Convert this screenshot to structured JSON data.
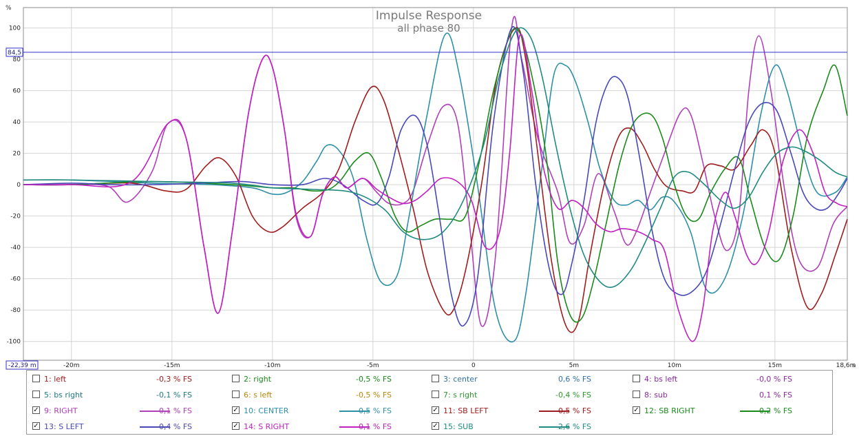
{
  "chart_data": {
    "type": "line",
    "title": "Impulse Response",
    "subtitle": "all phase 80",
    "y_unit": "%",
    "x_unit": "s",
    "xlim": [
      -22.39,
      18.6
    ],
    "ylim": [
      -112,
      113
    ],
    "x_ticks": [
      -20,
      -15,
      -10,
      -5,
      0,
      5,
      10,
      15
    ],
    "x_tick_labels": [
      "-20m",
      "-15m",
      "-10m",
      "-5m",
      "0",
      "5m",
      "10m",
      "15m"
    ],
    "x_left_label": "-22,39 m",
    "x_right_label": "18,6m",
    "y_ticks": [
      -100,
      -80,
      -60,
      -40,
      -20,
      0,
      20,
      40,
      60,
      80,
      100
    ],
    "cursor": {
      "label": "84,5",
      "y": 84.5
    },
    "grid": true,
    "series": [
      {
        "name": "9: RIGHT",
        "color": "#b040b8",
        "x": [
          -22.4,
          -20,
          -18.2,
          -17.2,
          -16,
          -15.2,
          -14.3,
          -13.4,
          -12.7,
          -12,
          -11.2,
          -10.5,
          -10,
          -9.4,
          -8.8,
          -8.1,
          -7.5,
          -6.9,
          -6.3,
          -5.5,
          -4.8,
          -4.2,
          -3.5,
          -3,
          -2.3,
          -1.5,
          -0.8,
          -0.2,
          0.4,
          1.1,
          1.9,
          2.4,
          3.2,
          4.2,
          4.8,
          5.5,
          6.2,
          7,
          7.6,
          8.1,
          8.8,
          9.5,
          10.3,
          10.8,
          11.4,
          12,
          12.6,
          13.2,
          13.7,
          14.2,
          14.8,
          15.5,
          16.2,
          17.1,
          17.9,
          18.6
        ],
        "y": [
          0,
          0,
          -1,
          -11,
          8,
          39,
          30,
          -40,
          -82,
          -30,
          45,
          80,
          75,
          35,
          -22,
          -33,
          -6,
          5,
          -2,
          4,
          -5,
          -12,
          -12,
          -4,
          25,
          50,
          40,
          -25,
          -90,
          -45,
          100,
          80,
          30,
          -5,
          -37,
          -26,
          7,
          -17,
          -38,
          -30,
          -5,
          20,
          46,
          45,
          15,
          -20,
          -42,
          -20,
          60,
          95,
          60,
          -5,
          -48,
          -53,
          -25,
          -14
        ]
      },
      {
        "name": "10: CENTER",
        "color": "#2f8fa8",
        "x": [
          -22.4,
          -20,
          -16,
          -13,
          -11,
          -10,
          -9.3,
          -8.5,
          -7.8,
          -7.3,
          -6.7,
          -6,
          -5.3,
          -4.6,
          -3.8,
          -3.2,
          -2.3,
          -1.4,
          -0.7,
          0.2,
          1.1,
          2,
          2.6,
          3.4,
          4,
          4.6,
          5.1,
          5.7,
          6.3,
          7,
          7.6,
          8.2,
          8.8,
          9.4,
          10,
          10.8,
          11.6,
          12.5,
          13.4,
          14.3,
          15,
          15.6,
          16.4,
          17.1,
          18,
          18.6
        ],
        "y": [
          3,
          3,
          1,
          0,
          -2,
          -6,
          -5,
          2,
          15,
          25,
          22,
          5,
          -35,
          -62,
          -58,
          -20,
          45,
          96,
          70,
          0,
          -80,
          -100,
          -70,
          10,
          70,
          76,
          65,
          40,
          10,
          -10,
          -13,
          -10,
          -16,
          -8,
          -11,
          -30,
          -67,
          -60,
          -20,
          45,
          76,
          60,
          20,
          -5,
          -5,
          5
        ]
      },
      {
        "name": "11: SB LEFT",
        "color": "#a01c1c",
        "x": [
          -22.4,
          -20,
          -17,
          -15.3,
          -14.3,
          -13.3,
          -12.6,
          -11.8,
          -11,
          -10.2,
          -9.5,
          -8.5,
          -7.5,
          -6.7,
          -5.9,
          -5.1,
          -4.5,
          -3.8,
          -3,
          -2.3,
          -1.5,
          -1,
          -0.4,
          0.4,
          1.2,
          2.1,
          2.6,
          3.2,
          3.9,
          4.6,
          5.2,
          5.8,
          6.5,
          7.2,
          7.8,
          8.4,
          9,
          9.6,
          10.4,
          11,
          11.6,
          12.3,
          13,
          13.8,
          14.4,
          15,
          15.8,
          16.6,
          17.3,
          18,
          18.6
        ],
        "y": [
          0,
          0,
          1,
          -4,
          -3,
          12,
          17,
          5,
          -20,
          -30,
          -27,
          -15,
          -5,
          10,
          40,
          62,
          55,
          25,
          -15,
          -55,
          -80,
          -80,
          -55,
          0,
          70,
          100,
          80,
          20,
          -50,
          -90,
          -88,
          -45,
          0,
          30,
          36,
          26,
          10,
          -1,
          -4,
          -4,
          12,
          12,
          10,
          25,
          35,
          20,
          -40,
          -78,
          -70,
          -45,
          -22
        ]
      },
      {
        "name": "12: SB RIGHT",
        "color": "#1a8a1a",
        "x": [
          -22.4,
          -20,
          -16,
          -12,
          -10,
          -9,
          -8,
          -7.2,
          -6.6,
          -5.9,
          -5.2,
          -4.6,
          -3.9,
          -3.3,
          -2.6,
          -1.9,
          -1.1,
          -0.4,
          0.3,
          1,
          1.8,
          2.3,
          2.9,
          3.6,
          4.2,
          4.8,
          5.4,
          6,
          6.6,
          7.3,
          8,
          8.8,
          9.4,
          10,
          10.6,
          11.2,
          11.8,
          12.5,
          13.2,
          13.8,
          14.5,
          15.2,
          15.9,
          16.6,
          17.4,
          18,
          18.6
        ],
        "y": [
          0,
          0,
          2,
          0,
          -2,
          -2,
          -4,
          -3,
          3,
          15,
          20,
          5,
          -20,
          -30,
          -26,
          -22,
          -22,
          -20,
          15,
          60,
          95,
          97,
          70,
          20,
          -50,
          -83,
          -85,
          -60,
          -25,
          15,
          40,
          45,
          30,
          0,
          -20,
          -22,
          -5,
          10,
          17,
          -10,
          -40,
          -48,
          -20,
          30,
          60,
          76,
          44
        ]
      },
      {
        "name": "13: S LEFT",
        "color": "#4848b8",
        "x": [
          -22.4,
          -20,
          -18,
          -16,
          -13.5,
          -11.5,
          -10,
          -8.5,
          -7.4,
          -6.5,
          -5.5,
          -4.8,
          -4.2,
          -3.6,
          -2.9,
          -2.3,
          -1.7,
          -1.1,
          -0.5,
          0.2,
          1,
          1.9,
          2.5,
          3.1,
          3.8,
          4.4,
          4.9,
          5.5,
          6.1,
          6.7,
          7.2,
          7.7,
          8.3,
          8.9,
          9.5,
          10.2,
          10.9,
          11.6,
          12.3,
          13,
          13.7,
          14.4,
          15.1,
          15.8,
          16.4,
          17,
          17.6,
          18.2,
          18.6
        ],
        "y": [
          0,
          1,
          0,
          0,
          1,
          2,
          0,
          0,
          4,
          0,
          -10,
          -12,
          5,
          35,
          44,
          25,
          -20,
          -70,
          -90,
          -60,
          40,
          100,
          70,
          0,
          -55,
          -70,
          -50,
          -10,
          40,
          65,
          68,
          55,
          15,
          -30,
          -60,
          -70,
          -68,
          -55,
          -25,
          10,
          40,
          52,
          47,
          20,
          -5,
          -15,
          -15,
          -5,
          4
        ]
      },
      {
        "name": "14: S RIGHT",
        "color": "#c020c0",
        "x": [
          -22.4,
          -20,
          -17,
          -15.2,
          -14.3,
          -13.4,
          -12.7,
          -12,
          -11.2,
          -10.5,
          -10,
          -9.4,
          -8.8,
          -8.1,
          -7.5,
          -6.9,
          -6.3,
          -5.5,
          -4.8,
          -4.2,
          -3.5,
          -2.9,
          -2.3,
          -1.6,
          -0.8,
          -0.1,
          0.6,
          1.3,
          1.8,
          2.3,
          2.9,
          3.5,
          4.2,
          4.9,
          5.5,
          6.1,
          6.8,
          7.4,
          8.2,
          8.9,
          9.5,
          10.2,
          10.9,
          11.4,
          11.9,
          12.5,
          13,
          13.6,
          14.1,
          14.7,
          15.4,
          16.2,
          16.9,
          17.5,
          18.1,
          18.6
        ],
        "y": [
          0,
          0,
          2,
          39,
          30,
          -40,
          -82,
          -30,
          45,
          80,
          75,
          35,
          -20,
          -33,
          -6,
          5,
          -2,
          4,
          -3,
          -8,
          -12,
          -10,
          -4,
          4,
          2,
          -10,
          -40,
          -30,
          20,
          95,
          60,
          10,
          -15,
          -10,
          -15,
          -25,
          -30,
          -28,
          -30,
          -35,
          -42,
          -80,
          -100,
          -80,
          -30,
          -5,
          -20,
          -45,
          -50,
          -30,
          15,
          35,
          20,
          -5,
          -12,
          -14
        ]
      },
      {
        "name": "15: SUB",
        "color": "#1f8a80",
        "x": [
          -22.4,
          -20,
          -16,
          -12,
          -10,
          -8,
          -6,
          -4.5,
          -3.5,
          -2.5,
          -1.5,
          -0.5,
          0.5,
          1.3,
          2.1,
          2.8,
          3.4,
          4.1,
          4.8,
          5.5,
          6.3,
          7,
          7.8,
          8.5,
          9.3,
          10,
          10.7,
          11.5,
          12.3,
          13,
          13.7,
          14.4,
          15.1,
          15.8,
          16.4,
          17.2,
          18,
          18.6
        ],
        "y": [
          3,
          3,
          2,
          1,
          -2,
          -3,
          -5,
          -15,
          -30,
          -35,
          -30,
          -10,
          25,
          70,
          98,
          95,
          70,
          25,
          -15,
          -45,
          -62,
          -65,
          -55,
          -38,
          -15,
          5,
          8,
          0,
          -10,
          -15,
          -8,
          8,
          20,
          24,
          22,
          16,
          8,
          5
        ]
      }
    ]
  },
  "legend": {
    "rows": [
      [
        {
          "label": "1: left",
          "value": "-0,3 % FS",
          "checked": false,
          "color": "#a01c1c"
        },
        {
          "label": "2: right",
          "value": "-0,5 % FS",
          "checked": false,
          "color": "#1a8a1a"
        },
        {
          "label": "3: center",
          "value": "0,6 % FS",
          "checked": false,
          "color": "#2f6fa8"
        },
        {
          "label": "4: bs left",
          "value": "-0,0 % FS",
          "checked": false,
          "color": "#8a2aa0"
        }
      ],
      [
        {
          "label": "5: bs right",
          "value": "-0,1 % FS",
          "checked": false,
          "color": "#1f7a80"
        },
        {
          "label": "6: s left",
          "value": "-0,5 % FS",
          "checked": false,
          "color": "#b8860b"
        },
        {
          "label": "7: s right",
          "value": "-0,4 % FS",
          "checked": false,
          "color": "#2a9a2a"
        },
        {
          "label": "8: sub",
          "value": "0,1 % FS",
          "checked": false,
          "color": "#8a2aa0"
        }
      ],
      [
        {
          "label": "9: RIGHT",
          "value": "0,1 % FS",
          "checked": true,
          "color": "#b040b8"
        },
        {
          "label": "10: CENTER",
          "value": "-0,5 % FS",
          "checked": true,
          "color": "#2f8fa8"
        },
        {
          "label": "11: SB LEFT",
          "value": "0,5 % FS",
          "checked": true,
          "color": "#a01c1c"
        },
        {
          "label": "12: SB RIGHT",
          "value": "0,2 % FS",
          "checked": true,
          "color": "#1a8a1a"
        }
      ],
      [
        {
          "label": "13: S LEFT",
          "value": "-0,4 % FS",
          "checked": true,
          "color": "#4848b8"
        },
        {
          "label": "14: S RIGHT",
          "value": "0,1 % FS",
          "checked": true,
          "color": "#c020c0"
        },
        {
          "label": "15: SUB",
          "value": "2,6 % FS",
          "checked": true,
          "color": "#1f8a80"
        }
      ]
    ]
  }
}
